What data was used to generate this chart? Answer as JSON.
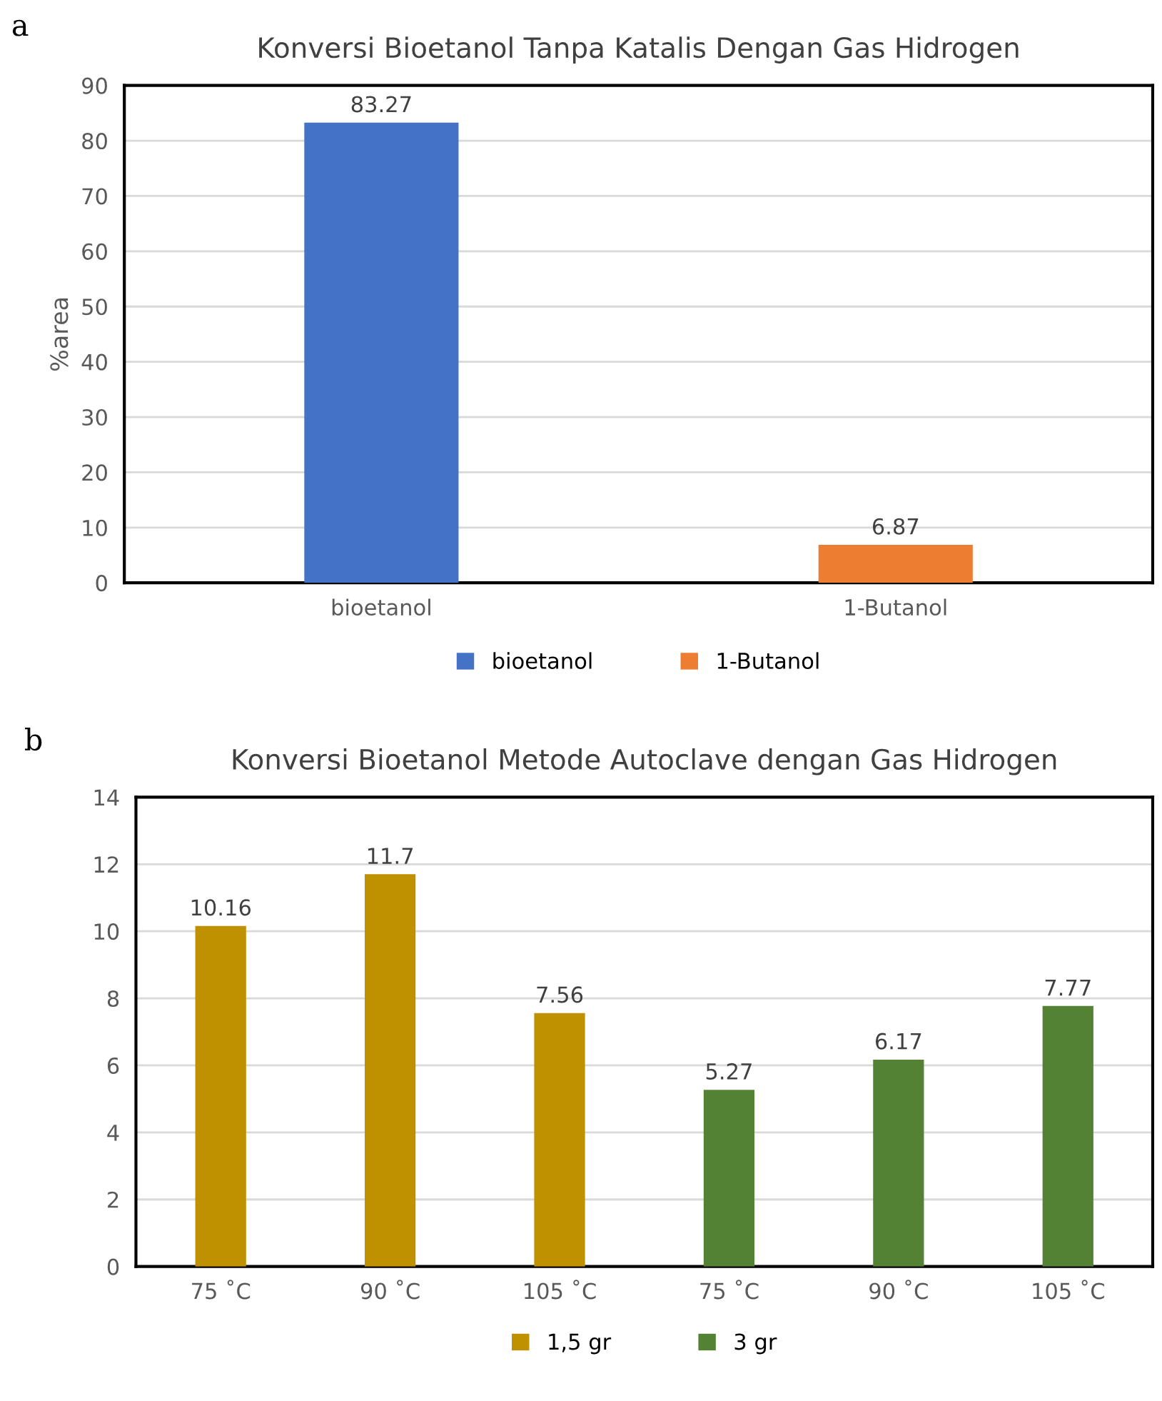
{
  "chart_data": [
    {
      "type": "bar",
      "title": "Konversi Bioetanol Tanpa Katalis Dengan Gas Hidrogen",
      "ylabel": "%area",
      "categories": [
        "bioetanol",
        "1-Butanol"
      ],
      "series": [
        {
          "name": "bioetanol",
          "color": "#4472c4",
          "values": [
            83.27,
            null
          ]
        },
        {
          "name": "1-Butanol",
          "color": "#ed7d31",
          "values": [
            null,
            6.87
          ]
        }
      ],
      "ylim": [
        0,
        90
      ],
      "yticks": [
        0,
        10,
        20,
        30,
        40,
        50,
        60,
        70,
        80,
        90
      ],
      "grid": "y",
      "legend": "bottom",
      "data_labels": true,
      "annotations": [
        "a"
      ]
    },
    {
      "type": "bar",
      "title": "Konversi Bioetanol Metode Autoclave dengan Gas Hidrogen",
      "categories": [
        "75 ˚C",
        "90 ˚C",
        "105 ˚C",
        "75 ˚C",
        "90 ˚C",
        "105 ˚C"
      ],
      "series": [
        {
          "name": "1,5 gr",
          "color": "#bf9000",
          "values": [
            10.16,
            11.7,
            7.56,
            null,
            null,
            null
          ]
        },
        {
          "name": "3 gr",
          "color": "#548235",
          "values": [
            null,
            null,
            null,
            5.27,
            6.17,
            7.77
          ]
        }
      ],
      "ylim": [
        0,
        14
      ],
      "yticks": [
        0,
        2,
        4,
        6,
        8,
        10,
        12,
        14
      ],
      "grid": "y",
      "legend": "bottom",
      "data_labels": true,
      "annotations": [
        "b"
      ]
    }
  ]
}
